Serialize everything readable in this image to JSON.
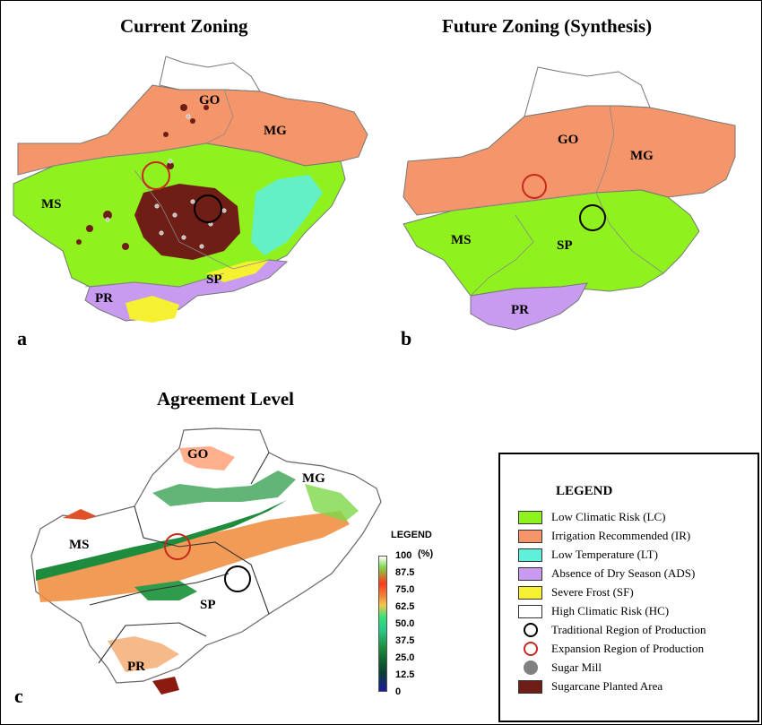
{
  "panels": {
    "a": {
      "title": "Current Zoning",
      "letter": "a",
      "states": [
        "GO",
        "MG",
        "MS",
        "SP",
        "PR"
      ]
    },
    "b": {
      "title": "Future Zoning (Synthesis)",
      "letter": "b",
      "states": [
        "GO",
        "MG",
        "MS",
        "SP",
        "PR"
      ]
    },
    "c": {
      "title": "Agreement Level",
      "letter": "c",
      "states": [
        "GO",
        "MG",
        "MS",
        "SP",
        "PR"
      ]
    }
  },
  "scale": {
    "title": "LEGEND",
    "unit": "(%)",
    "ticks": [
      "100",
      "87.5",
      "75.0",
      "62.5",
      "50.0",
      "37.5",
      "25.0",
      "12.5",
      "0"
    ]
  },
  "legend": {
    "title": "LEGEND",
    "items": [
      {
        "label": "Low Climatic Risk (LC)",
        "color": "#8ff21e",
        "kind": "swatch"
      },
      {
        "label": "Irrigation Recommended (IR)",
        "color": "#f5956a",
        "kind": "swatch"
      },
      {
        "label": "Low Temperature (LT)",
        "color": "#5ef0d8",
        "kind": "swatch"
      },
      {
        "label": "Absence of Dry Season (ADS)",
        "color": "#c89af0",
        "kind": "swatch"
      },
      {
        "label": "Severe Frost (SF)",
        "color": "#f5f032",
        "kind": "swatch"
      },
      {
        "label": "High Climatic Risk (HC)",
        "color": "#ffffff",
        "kind": "swatch"
      },
      {
        "label": "Traditional Region of Production",
        "color": "#000000",
        "kind": "circle"
      },
      {
        "label": "Expansion Region of Production",
        "color": "#c8281e",
        "kind": "circle"
      },
      {
        "label": "Sugar Mill",
        "color": "#808080",
        "kind": "dot"
      },
      {
        "label": "Sugarcane Planted Area",
        "color": "#6e1e14",
        "kind": "swatch"
      }
    ]
  }
}
